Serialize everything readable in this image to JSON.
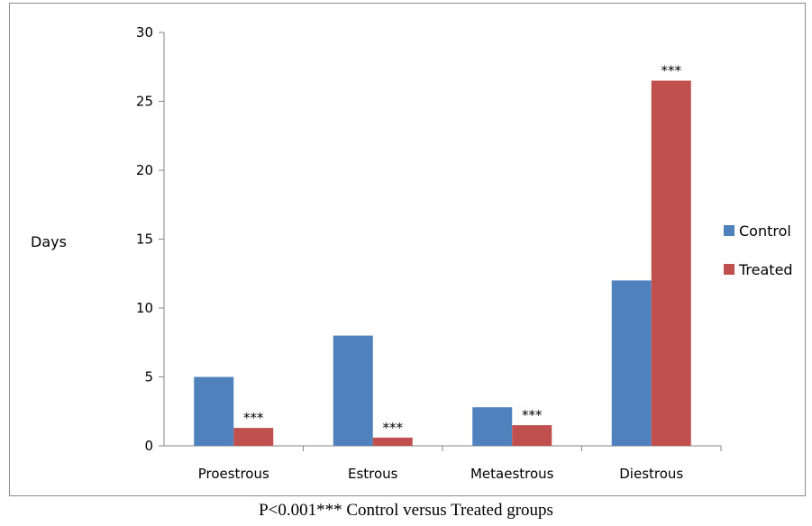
{
  "chart_data": {
    "type": "bar",
    "categories": [
      "Proestrous",
      "Estrous",
      "Metaestrous",
      "Diestrous"
    ],
    "series": [
      {
        "name": "Control",
        "values": [
          5,
          8,
          2.8,
          12
        ],
        "color": "#4f81bd"
      },
      {
        "name": "Treated",
        "values": [
          1.3,
          0.6,
          1.5,
          26.5
        ],
        "color": "#c0504d"
      }
    ],
    "annotations": [
      "***",
      "***",
      "***",
      "***"
    ],
    "ylabel": "Days",
    "ylim": [
      0,
      30
    ],
    "yticks": [
      0,
      5,
      10,
      15,
      20,
      25,
      30
    ],
    "grid": false,
    "legend_position": "right"
  },
  "caption": "P<0.001*** Control versus Treated groups"
}
